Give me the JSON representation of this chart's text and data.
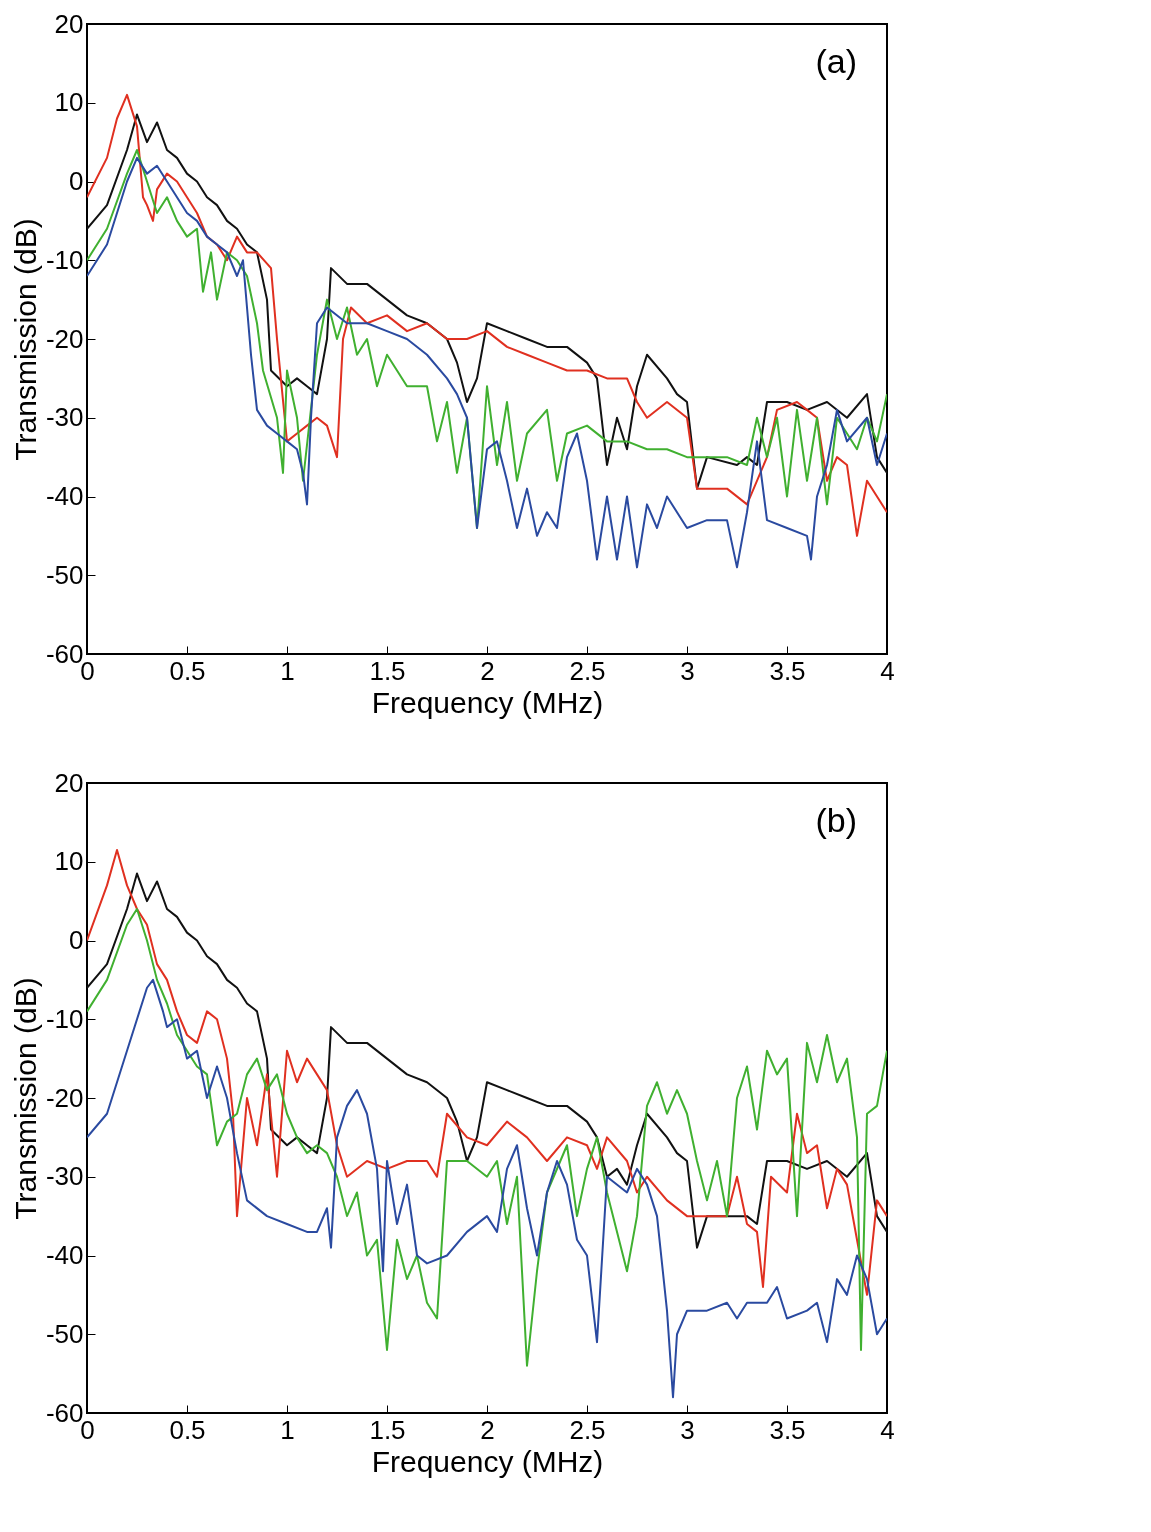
{
  "chart_data": [
    {
      "type": "line",
      "xlabel": "Frequency (MHz)",
      "ylabel": "Transmission (dB)",
      "annotations": [
        "(a)"
      ],
      "xlim": [
        0,
        4
      ],
      "xticks": [
        0,
        0.5,
        1,
        1.5,
        2,
        2.5,
        3,
        3.5,
        4
      ],
      "ylim": [
        -60,
        20
      ],
      "yticks": [
        -60,
        -50,
        -40,
        -30,
        -20,
        -10,
        0,
        10,
        20
      ],
      "series": [
        {
          "color": "#111111",
          "x": [
            0,
            0.1,
            0.2,
            0.25,
            0.3,
            0.35,
            0.4,
            0.45,
            0.5,
            0.55,
            0.6,
            0.65,
            0.7,
            0.75,
            0.8,
            0.85,
            0.9,
            0.92,
            1.0,
            1.05,
            1.1,
            1.15,
            1.2,
            1.22,
            1.3,
            1.4,
            1.5,
            1.6,
            1.7,
            1.8,
            1.85,
            1.9,
            1.95,
            2.0,
            2.1,
            2.2,
            2.3,
            2.4,
            2.5,
            2.55,
            2.6,
            2.65,
            2.7,
            2.75,
            2.8,
            2.9,
            2.95,
            3.0,
            3.05,
            3.1,
            3.25,
            3.3,
            3.35,
            3.4,
            3.5,
            3.6,
            3.7,
            3.8,
            3.9,
            3.95,
            4.0
          ],
          "values": [
            -6,
            -3,
            4,
            8.5,
            5,
            7.5,
            4,
            3,
            1,
            0,
            -2,
            -3,
            -5,
            -6,
            -8,
            -9,
            -15,
            -24,
            -26,
            -25,
            -26,
            -27,
            -20,
            -11,
            -13,
            -13,
            -15,
            -17,
            -18,
            -20,
            -23,
            -28,
            -25,
            -18,
            -19,
            -20,
            -21,
            -21,
            -23,
            -25,
            -36,
            -30,
            -34,
            -26,
            -22,
            -25,
            -27,
            -28,
            -39,
            -35,
            -36,
            -35,
            -36,
            -28,
            -28,
            -29,
            -28,
            -30,
            -27,
            -35,
            -37
          ]
        },
        {
          "color": "#e03020",
          "x": [
            0,
            0.1,
            0.15,
            0.2,
            0.25,
            0.28,
            0.3,
            0.33,
            0.35,
            0.4,
            0.45,
            0.5,
            0.55,
            0.6,
            0.65,
            0.7,
            0.75,
            0.8,
            0.85,
            0.92,
            0.95,
            1.0,
            1.05,
            1.1,
            1.15,
            1.2,
            1.25,
            1.28,
            1.32,
            1.4,
            1.5,
            1.6,
            1.7,
            1.8,
            1.9,
            2.0,
            2.1,
            2.2,
            2.3,
            2.4,
            2.5,
            2.6,
            2.7,
            2.75,
            2.8,
            2.9,
            3.0,
            3.05,
            3.2,
            3.3,
            3.4,
            3.45,
            3.55,
            3.6,
            3.65,
            3.7,
            3.75,
            3.8,
            3.85,
            3.9,
            4.0
          ],
          "values": [
            -2,
            3,
            8,
            11,
            7,
            -2,
            -3,
            -5,
            -1,
            1,
            0,
            -2,
            -4,
            -7,
            -8,
            -10,
            -7,
            -9,
            -9,
            -11,
            -20,
            -33,
            -32,
            -31,
            -30,
            -31,
            -35,
            -20,
            -16,
            -18,
            -17,
            -19,
            -18,
            -20,
            -20,
            -19,
            -21,
            -22,
            -23,
            -24,
            -24,
            -25,
            -25,
            -28,
            -30,
            -28,
            -30,
            -39,
            -39,
            -41,
            -35,
            -29,
            -28,
            -29,
            -30,
            -38,
            -35,
            -36,
            -45,
            -38,
            -42
          ]
        },
        {
          "color": "#40b030",
          "x": [
            0,
            0.1,
            0.2,
            0.25,
            0.3,
            0.35,
            0.4,
            0.45,
            0.5,
            0.55,
            0.58,
            0.62,
            0.65,
            0.7,
            0.75,
            0.8,
            0.85,
            0.88,
            0.95,
            0.98,
            1.0,
            1.05,
            1.08,
            1.15,
            1.2,
            1.25,
            1.3,
            1.35,
            1.4,
            1.45,
            1.5,
            1.6,
            1.7,
            1.75,
            1.8,
            1.85,
            1.9,
            1.95,
            2.0,
            2.05,
            2.1,
            2.15,
            2.2,
            2.3,
            2.35,
            2.4,
            2.5,
            2.6,
            2.7,
            2.8,
            2.9,
            3.0,
            3.1,
            3.2,
            3.3,
            3.35,
            3.4,
            3.45,
            3.5,
            3.55,
            3.6,
            3.65,
            3.7,
            3.75,
            3.8,
            3.85,
            3.9,
            3.95,
            4.0
          ],
          "values": [
            -10,
            -6,
            1,
            4,
            0,
            -4,
            -2,
            -5,
            -7,
            -6,
            -14,
            -9,
            -15,
            -9,
            -10,
            -12,
            -18,
            -24,
            -30,
            -37,
            -24,
            -30,
            -38,
            -22,
            -15,
            -20,
            -16,
            -22,
            -20,
            -26,
            -22,
            -26,
            -26,
            -33,
            -28,
            -37,
            -30,
            -44,
            -26,
            -36,
            -28,
            -38,
            -32,
            -29,
            -38,
            -32,
            -31,
            -33,
            -33,
            -34,
            -34,
            -35,
            -35,
            -35,
            -36,
            -30,
            -35,
            -30,
            -40,
            -29,
            -38,
            -30,
            -41,
            -30,
            -32,
            -34,
            -30,
            -33,
            -27
          ]
        },
        {
          "color": "#2a4aa0",
          "x": [
            0,
            0.1,
            0.2,
            0.25,
            0.3,
            0.35,
            0.4,
            0.45,
            0.5,
            0.55,
            0.6,
            0.65,
            0.7,
            0.75,
            0.78,
            0.82,
            0.85,
            0.9,
            0.95,
            1.0,
            1.05,
            1.08,
            1.1,
            1.12,
            1.15,
            1.2,
            1.3,
            1.4,
            1.5,
            1.6,
            1.7,
            1.8,
            1.85,
            1.9,
            1.95,
            2.0,
            2.05,
            2.1,
            2.15,
            2.2,
            2.25,
            2.3,
            2.35,
            2.4,
            2.45,
            2.5,
            2.55,
            2.6,
            2.65,
            2.7,
            2.75,
            2.8,
            2.85,
            2.9,
            3.0,
            3.1,
            3.2,
            3.25,
            3.3,
            3.35,
            3.4,
            3.5,
            3.6,
            3.62,
            3.65,
            3.7,
            3.75,
            3.8,
            3.9,
            3.95,
            4.0
          ],
          "values": [
            -12,
            -8,
            0,
            3,
            1,
            2,
            0,
            -2,
            -4,
            -5,
            -7,
            -8,
            -9,
            -12,
            -10,
            -22,
            -29,
            -31,
            -32,
            -33,
            -34,
            -37,
            -41,
            -30,
            -18,
            -16,
            -18,
            -18,
            -19,
            -20,
            -22,
            -25,
            -27,
            -30,
            -44,
            -34,
            -33,
            -38,
            -44,
            -39,
            -45,
            -42,
            -44,
            -35,
            -32,
            -38,
            -48,
            -40,
            -48,
            -40,
            -49,
            -41,
            -44,
            -40,
            -44,
            -43,
            -43,
            -49,
            -42,
            -33,
            -43,
            -44,
            -45,
            -48,
            -40,
            -36,
            -29,
            -33,
            -30,
            -36,
            -32
          ]
        }
      ]
    },
    {
      "type": "line",
      "xlabel": "Frequency (MHz)",
      "ylabel": "Transmission (dB)",
      "annotations": [
        "(b)"
      ],
      "xlim": [
        0,
        4
      ],
      "xticks": [
        0,
        0.5,
        1,
        1.5,
        2,
        2.5,
        3,
        3.5,
        4
      ],
      "ylim": [
        -60,
        20
      ],
      "yticks": [
        -60,
        -50,
        -40,
        -30,
        -20,
        -10,
        0,
        10,
        20
      ],
      "series": [
        {
          "color": "#111111",
          "x": [
            0,
            0.1,
            0.2,
            0.25,
            0.3,
            0.35,
            0.4,
            0.45,
            0.5,
            0.55,
            0.6,
            0.65,
            0.7,
            0.75,
            0.8,
            0.85,
            0.9,
            0.92,
            1.0,
            1.05,
            1.1,
            1.15,
            1.2,
            1.22,
            1.3,
            1.4,
            1.5,
            1.6,
            1.7,
            1.8,
            1.85,
            1.9,
            1.95,
            2.0,
            2.1,
            2.2,
            2.3,
            2.4,
            2.5,
            2.55,
            2.6,
            2.65,
            2.7,
            2.75,
            2.8,
            2.9,
            2.95,
            3.0,
            3.05,
            3.1,
            3.25,
            3.3,
            3.35,
            3.4,
            3.5,
            3.6,
            3.7,
            3.8,
            3.9,
            3.95,
            4.0
          ],
          "values": [
            -6,
            -3,
            4,
            8.5,
            5,
            7.5,
            4,
            3,
            1,
            0,
            -2,
            -3,
            -5,
            -6,
            -8,
            -9,
            -15,
            -24,
            -26,
            -25,
            -26,
            -27,
            -20,
            -11,
            -13,
            -13,
            -15,
            -17,
            -18,
            -20,
            -23,
            -28,
            -25,
            -18,
            -19,
            -20,
            -21,
            -21,
            -23,
            -25,
            -30,
            -29,
            -31,
            -26,
            -22,
            -25,
            -27,
            -28,
            -39,
            -35,
            -35,
            -35,
            -36,
            -28,
            -28,
            -29,
            -28,
            -30,
            -27,
            -35,
            -37
          ]
        },
        {
          "color": "#e03020",
          "x": [
            0,
            0.1,
            0.15,
            0.2,
            0.25,
            0.3,
            0.35,
            0.4,
            0.45,
            0.5,
            0.55,
            0.6,
            0.65,
            0.7,
            0.73,
            0.75,
            0.8,
            0.85,
            0.9,
            0.95,
            1.0,
            1.05,
            1.1,
            1.15,
            1.2,
            1.25,
            1.3,
            1.4,
            1.5,
            1.6,
            1.7,
            1.75,
            1.8,
            1.9,
            2.0,
            2.1,
            2.2,
            2.3,
            2.4,
            2.5,
            2.55,
            2.6,
            2.7,
            2.75,
            2.8,
            2.9,
            3.0,
            3.1,
            3.2,
            3.25,
            3.3,
            3.35,
            3.38,
            3.42,
            3.5,
            3.55,
            3.6,
            3.65,
            3.7,
            3.75,
            3.8,
            3.85,
            3.9,
            3.95,
            4.0
          ],
          "values": [
            0,
            7,
            11.5,
            7,
            4,
            2,
            -3,
            -5,
            -9,
            -12,
            -13,
            -9,
            -10,
            -15,
            -22,
            -35,
            -20,
            -26,
            -17,
            -30,
            -14,
            -18,
            -15,
            -17,
            -19,
            -26,
            -30,
            -28,
            -29,
            -28,
            -28,
            -30,
            -22,
            -25,
            -26,
            -23,
            -25,
            -28,
            -25,
            -26,
            -29,
            -25,
            -28,
            -32,
            -30,
            -33,
            -35,
            -35,
            -35,
            -30,
            -36,
            -37,
            -44,
            -30,
            -32,
            -22,
            -27,
            -26,
            -34,
            -29,
            -31,
            -38,
            -45,
            -33,
            -35
          ]
        },
        {
          "color": "#40b030",
          "x": [
            0,
            0.1,
            0.2,
            0.25,
            0.3,
            0.35,
            0.4,
            0.45,
            0.5,
            0.55,
            0.6,
            0.65,
            0.7,
            0.75,
            0.8,
            0.85,
            0.9,
            0.95,
            1.0,
            1.05,
            1.1,
            1.15,
            1.2,
            1.25,
            1.3,
            1.35,
            1.4,
            1.45,
            1.5,
            1.55,
            1.6,
            1.65,
            1.7,
            1.75,
            1.8,
            1.9,
            2.0,
            2.05,
            2.1,
            2.15,
            2.2,
            2.25,
            2.3,
            2.4,
            2.45,
            2.5,
            2.55,
            2.6,
            2.7,
            2.75,
            2.8,
            2.85,
            2.9,
            2.95,
            3.0,
            3.05,
            3.1,
            3.15,
            3.2,
            3.25,
            3.3,
            3.35,
            3.4,
            3.45,
            3.5,
            3.55,
            3.6,
            3.65,
            3.7,
            3.75,
            3.8,
            3.85,
            3.87,
            3.9,
            3.95,
            4.0
          ],
          "values": [
            -9,
            -5,
            2,
            4,
            0,
            -5,
            -8,
            -12,
            -14,
            -16,
            -17,
            -26,
            -23,
            -22,
            -17,
            -15,
            -19,
            -17,
            -22,
            -25,
            -27,
            -26,
            -27,
            -30,
            -35,
            -32,
            -40,
            -38,
            -52,
            -38,
            -43,
            -40,
            -46,
            -48,
            -28,
            -28,
            -30,
            -28,
            -36,
            -30,
            -54,
            -42,
            -32,
            -26,
            -35,
            -29,
            -25,
            -32,
            -42,
            -35,
            -21,
            -18,
            -22,
            -19,
            -22,
            -28,
            -33,
            -28,
            -35,
            -20,
            -16,
            -24,
            -14,
            -17,
            -15,
            -35,
            -13,
            -18,
            -12,
            -18,
            -15,
            -25,
            -52,
            -22,
            -21,
            -14
          ]
        },
        {
          "color": "#2a4aa0",
          "x": [
            0,
            0.1,
            0.2,
            0.3,
            0.33,
            0.38,
            0.4,
            0.45,
            0.5,
            0.55,
            0.6,
            0.65,
            0.7,
            0.75,
            0.8,
            0.9,
            1.0,
            1.1,
            1.15,
            1.2,
            1.22,
            1.25,
            1.3,
            1.35,
            1.4,
            1.45,
            1.48,
            1.5,
            1.55,
            1.6,
            1.65,
            1.7,
            1.8,
            1.9,
            2.0,
            2.05,
            2.1,
            2.15,
            2.2,
            2.25,
            2.3,
            2.35,
            2.4,
            2.45,
            2.5,
            2.55,
            2.6,
            2.7,
            2.75,
            2.8,
            2.85,
            2.9,
            2.93,
            2.95,
            3.0,
            3.1,
            3.2,
            3.25,
            3.3,
            3.4,
            3.45,
            3.5,
            3.6,
            3.65,
            3.7,
            3.75,
            3.8,
            3.85,
            3.9,
            3.95,
            4.0
          ],
          "values": [
            -25,
            -22,
            -14,
            -6,
            -5,
            -9,
            -11,
            -10,
            -15,
            -14,
            -20,
            -16,
            -20,
            -27,
            -33,
            -35,
            -36,
            -37,
            -37,
            -34,
            -39,
            -25,
            -21,
            -19,
            -22,
            -29,
            -42,
            -28,
            -36,
            -31,
            -40,
            -41,
            -40,
            -37,
            -35,
            -37,
            -29,
            -26,
            -34,
            -40,
            -32,
            -28,
            -31,
            -38,
            -40,
            -51,
            -30,
            -32,
            -29,
            -31,
            -35,
            -47,
            -58,
            -50,
            -47,
            -47,
            -46,
            -48,
            -46,
            -46,
            -44,
            -48,
            -47,
            -46,
            -51,
            -43,
            -45,
            -40,
            -43,
            -50,
            -48
          ]
        }
      ]
    }
  ]
}
